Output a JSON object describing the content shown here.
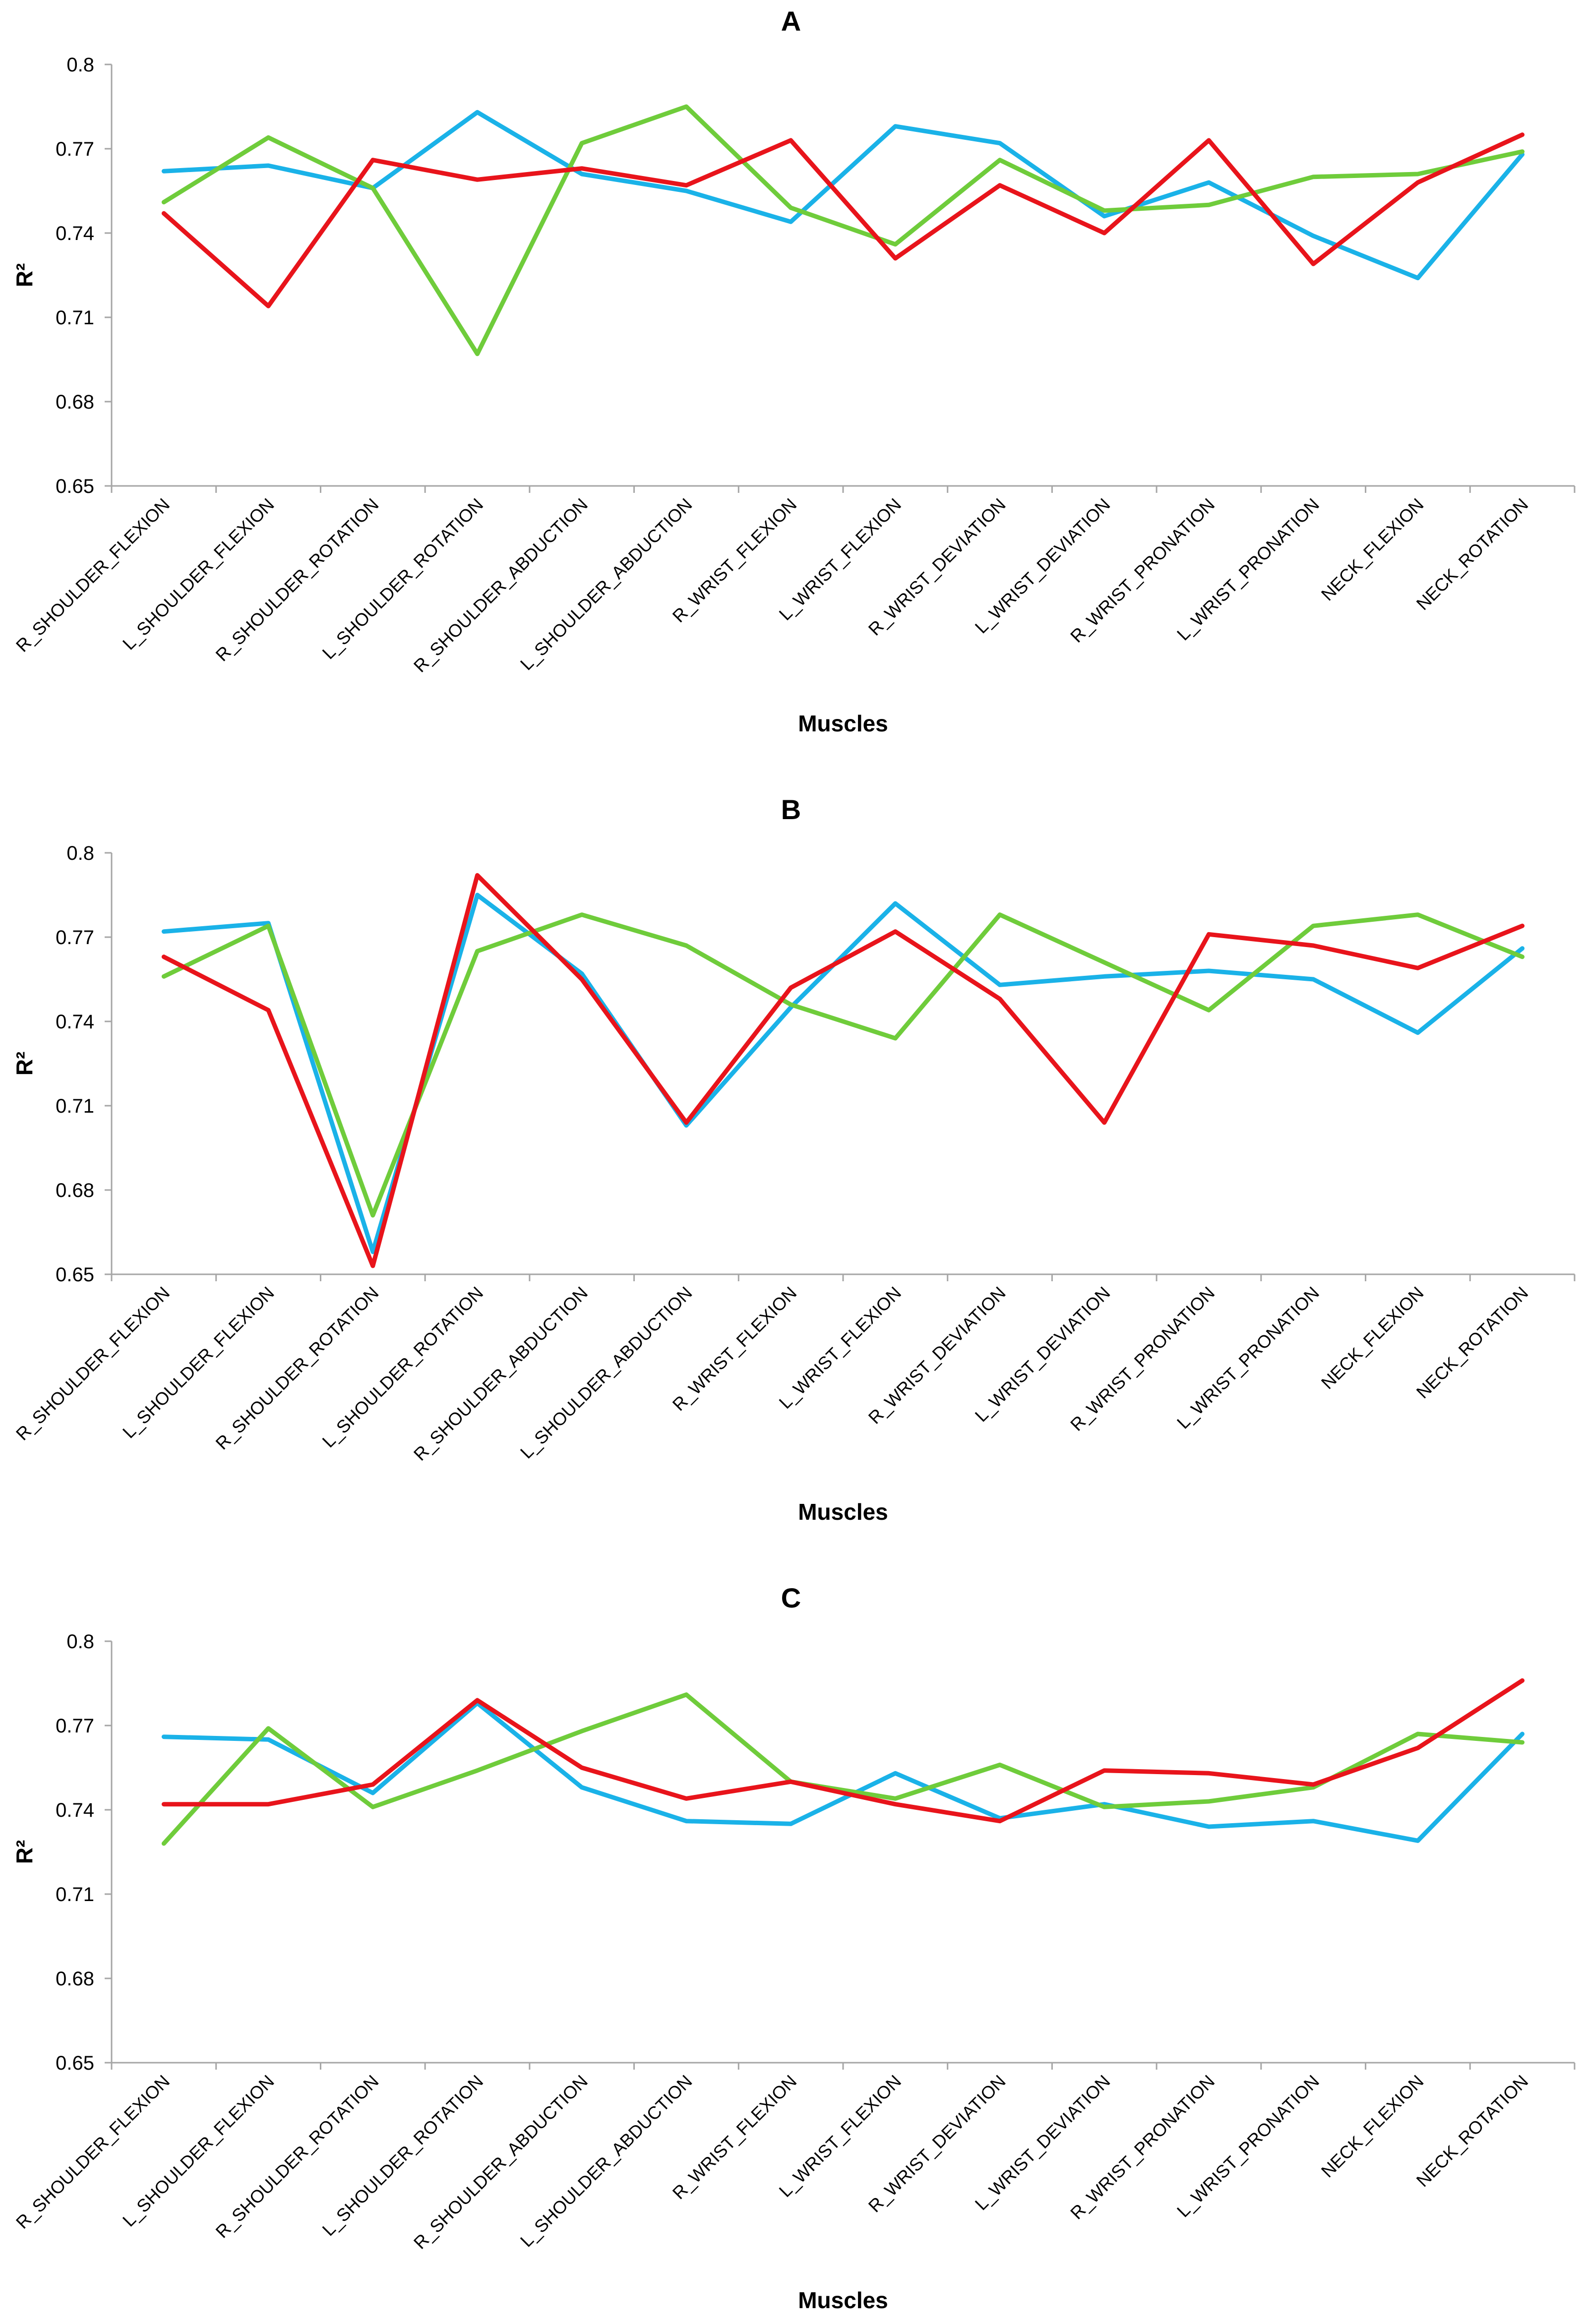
{
  "colors": {
    "cyan": "#1ab2e8",
    "green": "#6fcc3b",
    "red": "#e8141b",
    "axis": "#a6a6a6"
  },
  "chart_data": [
    {
      "type": "line",
      "panel": "A",
      "title": "A",
      "xlabel": "Muscles",
      "ylabel": "R²",
      "ylim": [
        0.65,
        0.8
      ],
      "yticks": [
        "0.65",
        "0.68",
        "0.71",
        "0.74",
        "0.77",
        "0.8"
      ],
      "ytick_values": [
        0.65,
        0.68,
        0.71,
        0.74,
        0.77,
        0.8
      ],
      "categories": [
        "R_SHOULDER_FLEXION",
        "L_SHOULDER_FLEXION",
        "R_SHOULDER_ROTATION",
        "L_SHOULDER_ROTATION",
        "R_SHOULDER_ABDUCTION",
        "L_SHOULDER_ABDUCTION",
        "R_WRIST_FLEXION",
        "L_WRIST_FLEXION",
        "R_WRIST_DEVIATION",
        "L_WRIST_DEVIATION",
        "R_WRIST_PRONATION",
        "L_WRIST_PRONATION",
        "NECK_FLEXION",
        "NECK_ROTATION"
      ],
      "series": [
        {
          "name": "cyan",
          "color": "#1ab2e8",
          "values": [
            0.762,
            0.764,
            0.756,
            0.783,
            0.761,
            0.755,
            0.744,
            0.778,
            0.772,
            0.746,
            0.758,
            0.739,
            0.724,
            0.768
          ]
        },
        {
          "name": "green",
          "color": "#6fcc3b",
          "values": [
            0.751,
            0.774,
            0.756,
            0.697,
            0.772,
            0.785,
            0.749,
            0.736,
            0.766,
            0.748,
            0.75,
            0.76,
            0.761,
            0.769
          ]
        },
        {
          "name": "red",
          "color": "#e8141b",
          "values": [
            0.747,
            0.714,
            0.766,
            0.759,
            0.763,
            0.757,
            0.773,
            0.731,
            0.757,
            0.74,
            0.773,
            0.729,
            0.758,
            0.775
          ]
        }
      ]
    },
    {
      "type": "line",
      "panel": "B",
      "title": "B",
      "xlabel": "Muscles",
      "ylabel": "R²",
      "ylim": [
        0.65,
        0.8
      ],
      "yticks": [
        "0.65",
        "0.68",
        "0.71",
        "0.74",
        "0.77",
        "0.8"
      ],
      "ytick_values": [
        0.65,
        0.68,
        0.71,
        0.74,
        0.77,
        0.8
      ],
      "categories": [
        "R_SHOULDER_FLEXION",
        "L_SHOULDER_FLEXION",
        "R_SHOULDER_ROTATION",
        "L_SHOULDER_ROTATION",
        "R_SHOULDER_ABDUCTION",
        "L_SHOULDER_ABDUCTION",
        "R_WRIST_FLEXION",
        "L_WRIST_FLEXION",
        "R_WRIST_DEVIATION",
        "L_WRIST_DEVIATION",
        "R_WRIST_PRONATION",
        "L_WRIST_PRONATION",
        "NECK_FLEXION",
        "NECK_ROTATION"
      ],
      "series": [
        {
          "name": "cyan",
          "color": "#1ab2e8",
          "values": [
            0.772,
            0.775,
            0.658,
            0.785,
            0.757,
            0.703,
            0.745,
            0.782,
            0.753,
            0.756,
            0.758,
            0.755,
            0.736,
            0.766
          ]
        },
        {
          "name": "green",
          "color": "#6fcc3b",
          "values": [
            0.756,
            0.774,
            0.671,
            0.765,
            0.778,
            0.767,
            0.746,
            0.734,
            0.778,
            0.761,
            0.744,
            0.774,
            0.778,
            0.763
          ]
        },
        {
          "name": "red",
          "color": "#e8141b",
          "values": [
            0.763,
            0.744,
            0.653,
            0.792,
            0.755,
            0.704,
            0.752,
            0.772,
            0.748,
            0.704,
            0.771,
            0.767,
            0.759,
            0.774
          ]
        }
      ]
    },
    {
      "type": "line",
      "panel": "C",
      "title": "C",
      "xlabel": "Muscles",
      "ylabel": "R²",
      "ylim": [
        0.65,
        0.8
      ],
      "yticks": [
        "0.65",
        "0.68",
        "0.71",
        "0.74",
        "0.77",
        "0.8"
      ],
      "ytick_values": [
        0.65,
        0.68,
        0.71,
        0.74,
        0.77,
        0.8
      ],
      "categories": [
        "R_SHOULDER_FLEXION",
        "L_SHOULDER_FLEXION",
        "R_SHOULDER_ROTATION",
        "L_SHOULDER_ROTATION",
        "R_SHOULDER_ABDUCTION",
        "L_SHOULDER_ABDUCTION",
        "R_WRIST_FLEXION",
        "L_WRIST_FLEXION",
        "R_WRIST_DEVIATION",
        "L_WRIST_DEVIATION",
        "R_WRIST_PRONATION",
        "L_WRIST_PRONATION",
        "NECK_FLEXION",
        "NECK_ROTATION"
      ],
      "series": [
        {
          "name": "cyan",
          "color": "#1ab2e8",
          "values": [
            0.766,
            0.765,
            0.746,
            0.778,
            0.748,
            0.736,
            0.735,
            0.753,
            0.737,
            0.742,
            0.734,
            0.736,
            0.729,
            0.767
          ]
        },
        {
          "name": "green",
          "color": "#6fcc3b",
          "values": [
            0.728,
            0.769,
            0.741,
            0.754,
            0.768,
            0.781,
            0.75,
            0.744,
            0.756,
            0.741,
            0.743,
            0.748,
            0.767,
            0.764
          ]
        },
        {
          "name": "red",
          "color": "#e8141b",
          "values": [
            0.742,
            0.742,
            0.749,
            0.779,
            0.755,
            0.744,
            0.75,
            0.742,
            0.736,
            0.754,
            0.753,
            0.749,
            0.762,
            0.786
          ]
        }
      ]
    }
  ]
}
